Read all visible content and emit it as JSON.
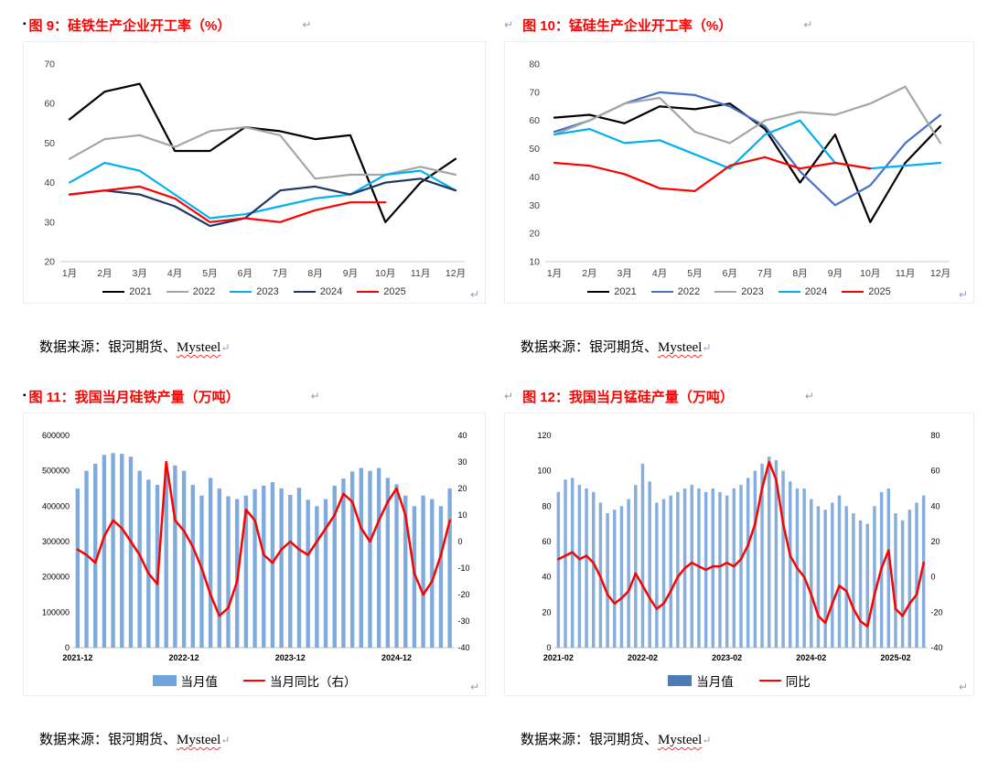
{
  "pilcrow": "↵",
  "bullet": "▪",
  "figures": [
    {
      "title": "图 9：硅铁生产企业开工率（%）",
      "source_prefix": "数据来源：银河期货、",
      "source_brand": "Mysteel"
    },
    {
      "title": "图 10：锰硅生产企业开工率（%）",
      "source_prefix": "数据来源：银河期货、",
      "source_brand": "Mysteel"
    },
    {
      "title": "图 11：我国当月硅铁产量（万吨）",
      "source_prefix": "数据来源：银河期货、",
      "source_brand": "Mysteel"
    },
    {
      "title": "图 12：我国当月锰硅产量（万吨）",
      "source_prefix": "数据来源：银河期货、",
      "source_brand": "Mysteel"
    }
  ],
  "chart_data": [
    {
      "type": "line",
      "title": "硅铁生产企业开工率（%）",
      "categories": [
        "1月",
        "2月",
        "3月",
        "4月",
        "5月",
        "6月",
        "7月",
        "8月",
        "9月",
        "10月",
        "11月",
        "12月"
      ],
      "ylim": [
        20,
        70
      ],
      "yticks": [
        20,
        30,
        40,
        50,
        60,
        70
      ],
      "grid": false,
      "legend_position": "bottom",
      "series": [
        {
          "name": "2021",
          "color": "#000000",
          "values": [
            56,
            63,
            65,
            48,
            48,
            54,
            53,
            51,
            52,
            30,
            40,
            46
          ]
        },
        {
          "name": "2022",
          "color": "#A6A6A6",
          "values": [
            46,
            51,
            52,
            49,
            53,
            54,
            52,
            41,
            42,
            42,
            44,
            42
          ]
        },
        {
          "name": "2023",
          "color": "#00B0F0",
          "values": [
            40,
            45,
            43,
            37,
            31,
            32,
            34,
            36,
            37,
            42,
            43,
            38
          ]
        },
        {
          "name": "2024",
          "color": "#1F3864",
          "values": [
            37,
            38,
            37,
            34,
            29,
            31,
            38,
            39,
            37,
            40,
            41,
            38
          ]
        },
        {
          "name": "2025",
          "color": "#FF0000",
          "values": [
            37,
            38,
            39,
            36,
            30,
            31,
            30,
            33,
            35,
            35,
            null,
            null
          ]
        }
      ]
    },
    {
      "type": "line",
      "title": "锰硅生产企业开工率（%）",
      "categories": [
        "1月",
        "2月",
        "3月",
        "4月",
        "5月",
        "6月",
        "7月",
        "8月",
        "9月",
        "10月",
        "11月",
        "12月"
      ],
      "ylim": [
        10,
        80
      ],
      "yticks": [
        10,
        20,
        30,
        40,
        50,
        60,
        70,
        80
      ],
      "grid": false,
      "legend_position": "bottom",
      "series": [
        {
          "name": "2021",
          "color": "#000000",
          "values": [
            61,
            62,
            59,
            65,
            64,
            66,
            57,
            38,
            55,
            24,
            45,
            58
          ]
        },
        {
          "name": "2022",
          "color": "#4472C4",
          "values": [
            56,
            60,
            66,
            70,
            69,
            65,
            58,
            42,
            30,
            37,
            52,
            62
          ]
        },
        {
          "name": "2023",
          "color": "#A6A6A6",
          "values": [
            55,
            60,
            66,
            68,
            56,
            52,
            60,
            63,
            62,
            66,
            72,
            52
          ]
        },
        {
          "name": "2024",
          "color": "#00B0F0",
          "values": [
            55,
            57,
            52,
            53,
            48,
            43,
            55,
            60,
            45,
            43,
            44,
            45
          ]
        },
        {
          "name": "2025",
          "color": "#FF0000",
          "values": [
            45,
            44,
            41,
            36,
            35,
            44,
            47,
            43,
            45,
            43,
            null,
            null
          ]
        }
      ]
    },
    {
      "type": "combo",
      "title": "我国当月硅铁产量（万吨）",
      "categories": [
        "2021-12",
        "2022-01",
        "2022-02",
        "2022-03",
        "2022-04",
        "2022-05",
        "2022-06",
        "2022-07",
        "2022-08",
        "2022-09",
        "2022-10",
        "2022-11",
        "2022-12",
        "2023-01",
        "2023-02",
        "2023-03",
        "2023-04",
        "2023-05",
        "2023-06",
        "2023-07",
        "2023-08",
        "2023-09",
        "2023-10",
        "2023-11",
        "2023-12",
        "2024-01",
        "2024-02",
        "2024-03",
        "2024-04",
        "2024-05",
        "2024-06",
        "2024-07",
        "2024-08",
        "2024-09",
        "2024-10",
        "2024-11",
        "2024-12",
        "2025-01",
        "2025-02",
        "2025-03",
        "2025-04",
        "2025-05",
        "2025-06"
      ],
      "xticks_shown": [
        "2021-12",
        "2022-12",
        "2023-12",
        "2024-12"
      ],
      "left_lim": [
        0,
        600000
      ],
      "left_ticks": [
        0,
        100000,
        200000,
        300000,
        400000,
        500000,
        600000
      ],
      "right_lim": [
        -40,
        40
      ],
      "right_ticks": [
        -40,
        -30,
        -20,
        -10,
        0,
        10,
        20,
        30,
        40
      ],
      "bars": {
        "name": "当月值",
        "color": "#7EAADC",
        "values": [
          450000,
          500000,
          520000,
          545000,
          550000,
          548000,
          540000,
          500000,
          475000,
          460000,
          505000,
          515000,
          500000,
          460000,
          430000,
          480000,
          450000,
          428000,
          420000,
          430000,
          448000,
          458000,
          468000,
          450000,
          432000,
          452000,
          418000,
          400000,
          420000,
          458000,
          478000,
          498000,
          508000,
          500000,
          508000,
          480000,
          462000,
          430000,
          400000,
          430000,
          420000,
          400000,
          450000
        ]
      },
      "line": {
        "name": "当月同比（右）",
        "color": "#FF0000",
        "values": [
          -3,
          -5,
          -8,
          2,
          8,
          5,
          0,
          -5,
          -12,
          -16,
          30,
          8,
          4,
          -2,
          -10,
          -20,
          -28,
          -25,
          -15,
          12,
          8,
          -5,
          -8,
          -3,
          0,
          -3,
          -5,
          0,
          5,
          10,
          18,
          15,
          5,
          0,
          8,
          15,
          20,
          10,
          -12,
          -20,
          -15,
          -5,
          8
        ]
      },
      "legend": [
        {
          "label": "当月值",
          "type": "bar",
          "color": "#6FA3DC"
        },
        {
          "label": "当月同比（右）",
          "type": "line",
          "color": "#FF0000"
        }
      ]
    },
    {
      "type": "combo",
      "title": "我国当月锰硅产量（万吨）",
      "categories": [
        "2021-02",
        "2021-03",
        "2021-04",
        "2021-05",
        "2021-06",
        "2021-07",
        "2021-08",
        "2021-09",
        "2021-10",
        "2021-11",
        "2021-12",
        "2022-01",
        "2022-02",
        "2022-03",
        "2022-04",
        "2022-05",
        "2022-06",
        "2022-07",
        "2022-08",
        "2022-09",
        "2022-10",
        "2022-11",
        "2022-12",
        "2023-01",
        "2023-02",
        "2023-03",
        "2023-04",
        "2023-05",
        "2023-06",
        "2023-07",
        "2023-08",
        "2023-09",
        "2023-10",
        "2023-11",
        "2023-12",
        "2024-01",
        "2024-02",
        "2024-03",
        "2024-04",
        "2024-05",
        "2024-06",
        "2024-07",
        "2024-08",
        "2024-09",
        "2024-10",
        "2024-11",
        "2024-12",
        "2025-01",
        "2025-02",
        "2025-03",
        "2025-04",
        "2025-05",
        "2025-06"
      ],
      "xticks_shown": [
        "2021-02",
        "2022-02",
        "2023-02",
        "2024-02",
        "2025-02"
      ],
      "left_lim": [
        0,
        120
      ],
      "left_ticks": [
        0,
        20,
        40,
        60,
        80,
        100,
        120
      ],
      "right_lim": [
        -40,
        80
      ],
      "right_ticks": [
        -40,
        -20,
        0,
        20,
        40,
        60,
        80
      ],
      "bars": {
        "name": "当月值",
        "color": "#86AEDC",
        "values": [
          88,
          95,
          96,
          92,
          90,
          88,
          82,
          76,
          78,
          80,
          84,
          92,
          104,
          94,
          82,
          84,
          86,
          88,
          90,
          92,
          90,
          88,
          90,
          88,
          86,
          90,
          92,
          96,
          100,
          104,
          108,
          106,
          100,
          94,
          90,
          90,
          84,
          80,
          78,
          82,
          86,
          80,
          76,
          72,
          70,
          80,
          88,
          90,
          76,
          72,
          78,
          82,
          86
        ]
      },
      "line": {
        "name": "同比",
        "color": "#FF0000",
        "values": [
          10,
          12,
          14,
          10,
          12,
          8,
          0,
          -10,
          -15,
          -12,
          -8,
          2,
          -5,
          -12,
          -18,
          -15,
          -8,
          0,
          5,
          8,
          6,
          4,
          6,
          6,
          8,
          6,
          10,
          18,
          30,
          50,
          65,
          55,
          30,
          12,
          5,
          0,
          -10,
          -22,
          -26,
          -15,
          -5,
          -8,
          -18,
          -25,
          -28,
          -10,
          5,
          15,
          -18,
          -22,
          -15,
          -10,
          8
        ]
      },
      "legend": [
        {
          "label": "当月值",
          "type": "bar",
          "color": "#4E7AB5"
        },
        {
          "label": "同比",
          "type": "line",
          "color": "#FF0000"
        }
      ]
    }
  ]
}
